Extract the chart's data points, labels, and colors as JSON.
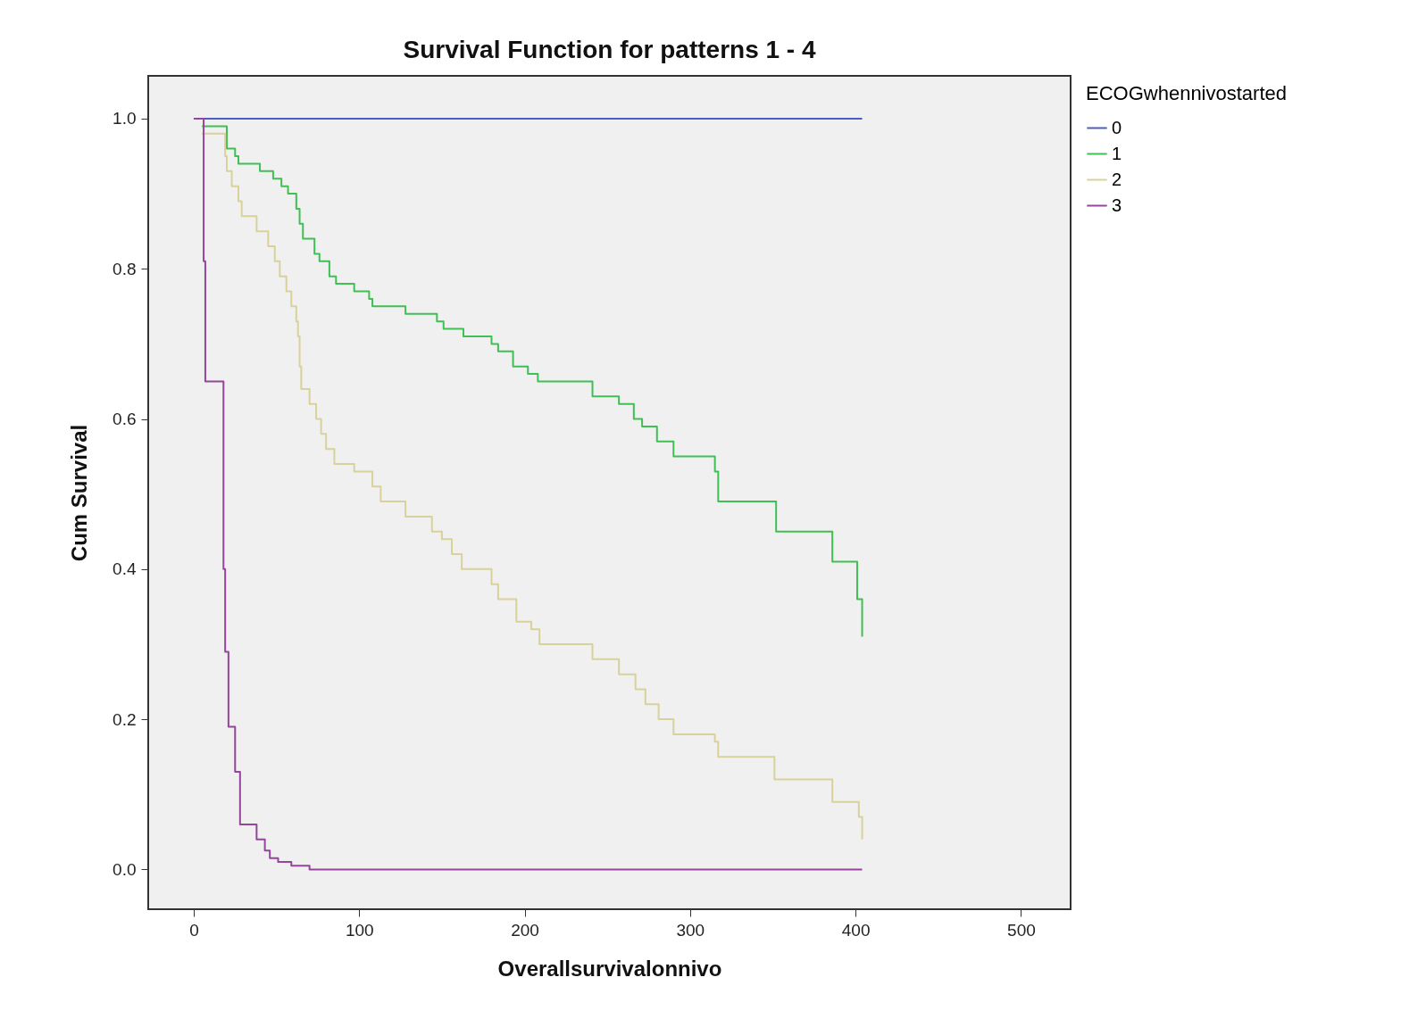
{
  "chart_data": {
    "type": "step",
    "title": "Survival Function for patterns 1 - 4",
    "xlabel": "Overallsurvivalonnivo",
    "ylabel": "Cum Survival",
    "legend_title": "ECOGwhennivostarted",
    "legend": "top right",
    "grid": false,
    "marker": "none",
    "line_style": "solid",
    "xlim": [
      -27.5,
      530
    ],
    "xticks": [
      0,
      100,
      200,
      300,
      400,
      500
    ],
    "ylim": [
      -0.053,
      1.057
    ],
    "yticks": [
      {
        "value": 0,
        "label": "0.0"
      },
      {
        "value": 0.2,
        "label": "0.2"
      },
      {
        "value": 0.4,
        "label": "0.4"
      },
      {
        "value": 0.6,
        "label": "0.6"
      },
      {
        "value": 0.8,
        "label": "0.8"
      },
      {
        "value": 1,
        "label": "1.0"
      }
    ],
    "series": [
      {
        "name": "0",
        "color": "#4a5fc4",
        "x": [
          0,
          404
        ],
        "values": [
          1.0,
          1.0
        ]
      },
      {
        "name": "1",
        "color": "#3fbf54",
        "x": [
          5,
          20,
          25,
          27,
          40,
          48,
          53,
          57,
          62,
          64,
          66,
          73,
          76,
          82,
          86,
          97,
          106,
          108,
          128,
          147,
          151,
          163,
          180,
          184,
          193,
          202,
          208,
          241,
          257,
          266,
          271,
          280,
          290,
          315,
          317,
          352,
          386,
          401,
          404
        ],
        "values": [
          0.99,
          0.96,
          0.95,
          0.94,
          0.93,
          0.92,
          0.91,
          0.9,
          0.88,
          0.86,
          0.84,
          0.82,
          0.81,
          0.79,
          0.78,
          0.77,
          0.76,
          0.75,
          0.74,
          0.73,
          0.72,
          0.71,
          0.7,
          0.69,
          0.67,
          0.66,
          0.65,
          0.63,
          0.62,
          0.6,
          0.59,
          0.57,
          0.55,
          0.53,
          0.49,
          0.45,
          0.41,
          0.36,
          0.31
        ]
      },
      {
        "name": "2",
        "color": "#d8d29a",
        "x": [
          5,
          19,
          20,
          23,
          27,
          29,
          38,
          45,
          49,
          52,
          56,
          59,
          62,
          63,
          64,
          65,
          70,
          74,
          77,
          80,
          85,
          97,
          108,
          113,
          128,
          144,
          150,
          156,
          162,
          180,
          184,
          195,
          204,
          209,
          241,
          257,
          267,
          273,
          281,
          290,
          315,
          317,
          351,
          386,
          402,
          404
        ],
        "values": [
          0.98,
          0.95,
          0.93,
          0.91,
          0.89,
          0.87,
          0.85,
          0.83,
          0.81,
          0.79,
          0.77,
          0.75,
          0.73,
          0.71,
          0.67,
          0.64,
          0.62,
          0.6,
          0.58,
          0.56,
          0.54,
          0.53,
          0.51,
          0.49,
          0.47,
          0.45,
          0.44,
          0.42,
          0.4,
          0.38,
          0.36,
          0.33,
          0.32,
          0.3,
          0.28,
          0.26,
          0.24,
          0.22,
          0.2,
          0.18,
          0.17,
          0.15,
          0.12,
          0.09,
          0.07,
          0.04
        ]
      },
      {
        "name": "3",
        "color": "#93469a",
        "x": [
          0,
          6,
          7,
          18,
          19,
          21,
          25,
          28,
          38,
          43,
          46,
          51,
          59,
          70,
          404
        ],
        "values": [
          1.0,
          0.81,
          0.65,
          0.4,
          0.29,
          0.19,
          0.13,
          0.06,
          0.04,
          0.025,
          0.015,
          0.01,
          0.005,
          0.0,
          0.0
        ]
      }
    ]
  }
}
